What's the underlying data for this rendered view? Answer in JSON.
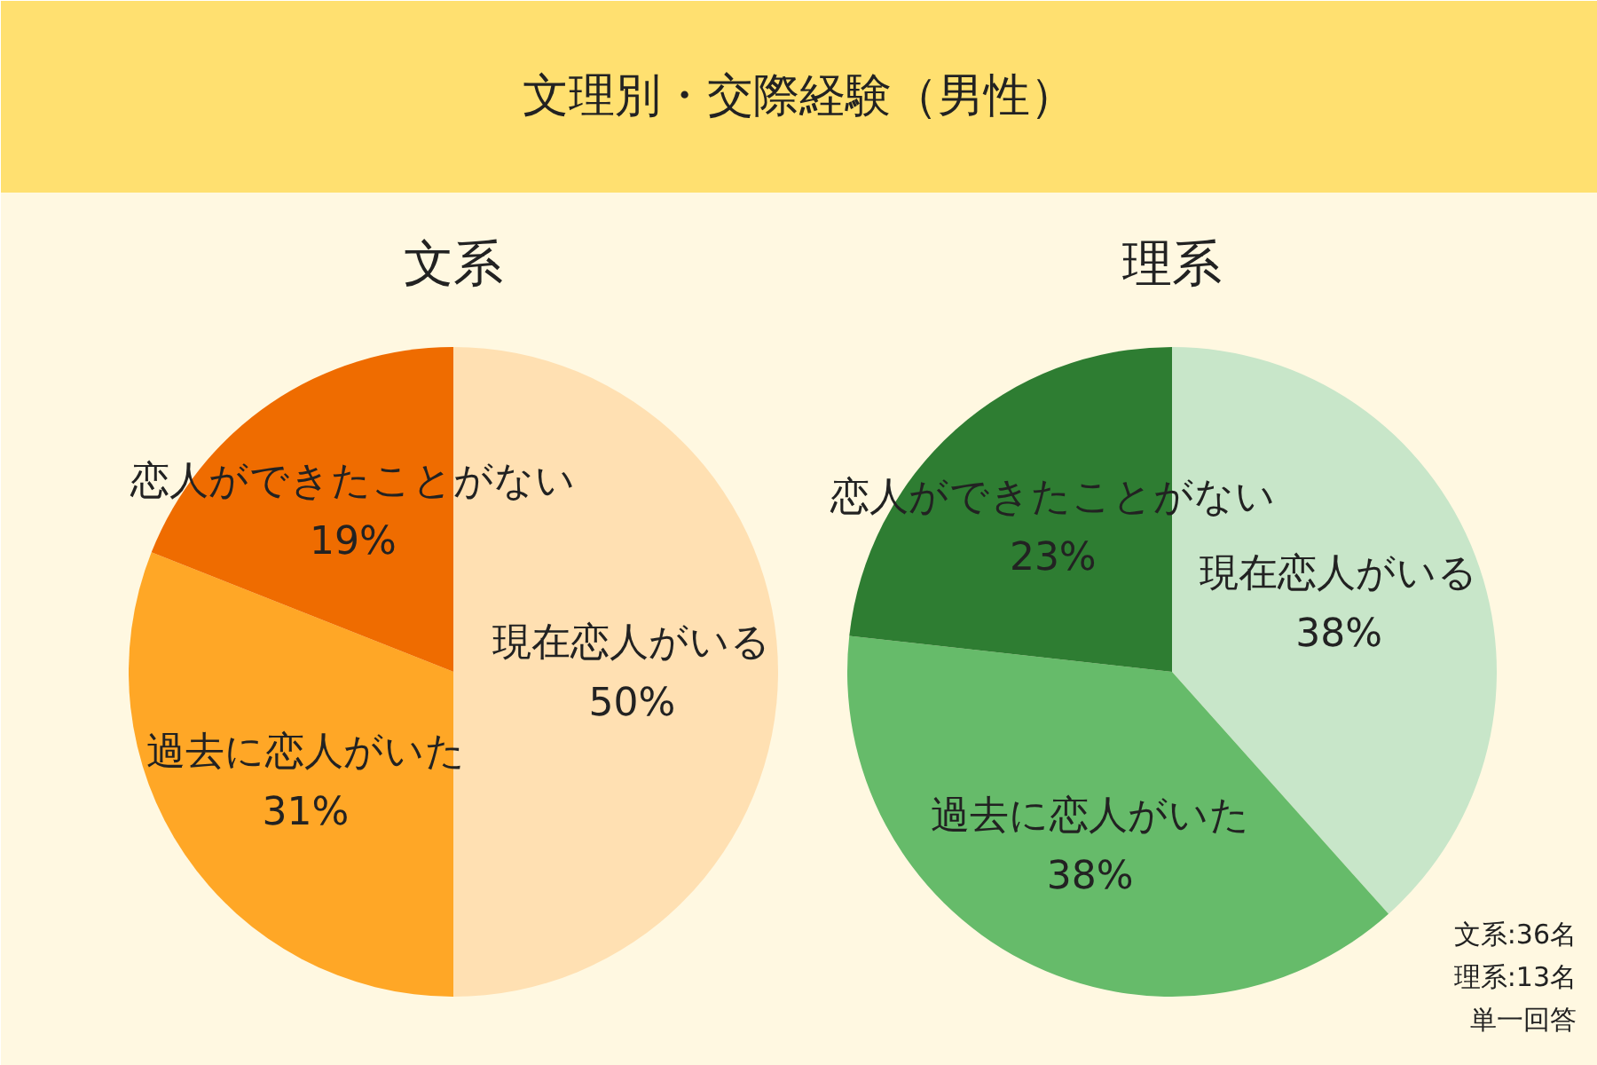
{
  "chart_data": [
    {
      "type": "other",
      "title": "文理別・交際経験（男性）"
    },
    {
      "type": "pie",
      "title": "文系",
      "categories": [
        "現在恋人がいる",
        "過去に恋人がいた",
        "恋人ができたことがない"
      ],
      "values": [
        50,
        31,
        19
      ],
      "colors": [
        "#ffe0b2",
        "#ffa726",
        "#ef6c00"
      ],
      "value_labels": [
        "50%",
        "31%",
        "19%"
      ]
    },
    {
      "type": "pie",
      "title": "理系",
      "categories": [
        "現在恋人がいる",
        "過去に恋人がいた",
        "恋人ができたことがない"
      ],
      "values": [
        38,
        38,
        23
      ],
      "colors": [
        "#c8e6c9",
        "#66bb6a",
        "#2e7d32"
      ],
      "value_labels": [
        "38%",
        "38%",
        "23%"
      ],
      "annotations": [
        "文系:36名",
        "理系:13名",
        "単一回答"
      ]
    }
  ]
}
